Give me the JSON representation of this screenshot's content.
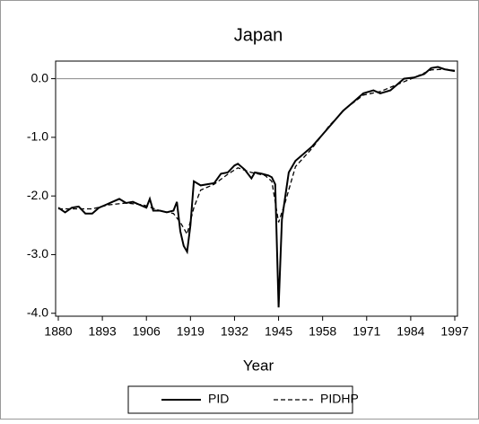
{
  "chart_data": {
    "type": "line",
    "title": "Japan",
    "x_label": "Year",
    "xlim": [
      1880,
      1997
    ],
    "xticks": [
      1880,
      1893,
      1906,
      1919,
      1932,
      1945,
      1958,
      1971,
      1984,
      1997
    ],
    "ylim": [
      -4.05,
      0.3
    ],
    "yticks": [
      {
        "value": 0,
        "label": "0.0"
      },
      {
        "value": -1,
        "label": "-1.0"
      },
      {
        "value": -2,
        "label": "-2.0"
      },
      {
        "value": -3,
        "label": "-3.0"
      },
      {
        "value": -4,
        "label": "-4.0"
      }
    ],
    "reference_line": 0,
    "legend": "bottom",
    "series": [
      {
        "name": "PID",
        "color": "#000000",
        "dash": "solid",
        "x": [
          1880,
          1882,
          1884,
          1886,
          1888,
          1890,
          1892,
          1894,
          1896,
          1898,
          1900,
          1902,
          1904,
          1906,
          1907,
          1908,
          1910,
          1912,
          1914,
          1915,
          1916,
          1917,
          1918,
          1919,
          1920,
          1922,
          1924,
          1926,
          1928,
          1930,
          1932,
          1933,
          1935,
          1937,
          1938,
          1940,
          1942,
          1943,
          1944,
          1945,
          1946,
          1947,
          1948,
          1950,
          1952,
          1955,
          1958,
          1961,
          1964,
          1967,
          1970,
          1973,
          1975,
          1978,
          1980,
          1982,
          1985,
          1988,
          1990,
          1992,
          1994,
          1997
        ],
        "values": [
          -2.2,
          -2.28,
          -2.2,
          -2.18,
          -2.3,
          -2.3,
          -2.2,
          -2.15,
          -2.1,
          -2.05,
          -2.12,
          -2.1,
          -2.15,
          -2.2,
          -2.05,
          -2.25,
          -2.25,
          -2.28,
          -2.25,
          -2.1,
          -2.6,
          -2.85,
          -2.95,
          -2.5,
          -1.75,
          -1.82,
          -1.8,
          -1.78,
          -1.62,
          -1.6,
          -1.48,
          -1.45,
          -1.55,
          -1.7,
          -1.6,
          -1.62,
          -1.65,
          -1.68,
          -1.8,
          -3.9,
          -2.4,
          -2.0,
          -1.6,
          -1.4,
          -1.3,
          -1.15,
          -0.95,
          -0.75,
          -0.55,
          -0.4,
          -0.25,
          -0.2,
          -0.25,
          -0.2,
          -0.1,
          0.0,
          0.02,
          0.08,
          0.18,
          0.2,
          0.16,
          0.13
        ]
      },
      {
        "name": "PIDHP",
        "color": "#000000",
        "dash": "dashed",
        "x": [
          1880,
          1885,
          1890,
          1895,
          1900,
          1905,
          1910,
          1914,
          1916,
          1918,
          1920,
          1922,
          1926,
          1930,
          1933,
          1937,
          1941,
          1943,
          1945,
          1947,
          1950,
          1955,
          1960,
          1965,
          1970,
          1975,
          1980,
          1985,
          1990,
          1994,
          1997
        ],
        "values": [
          -2.22,
          -2.22,
          -2.22,
          -2.15,
          -2.12,
          -2.15,
          -2.25,
          -2.3,
          -2.45,
          -2.65,
          -2.2,
          -1.9,
          -1.8,
          -1.63,
          -1.52,
          -1.6,
          -1.65,
          -1.75,
          -2.45,
          -2.1,
          -1.5,
          -1.18,
          -0.8,
          -0.5,
          -0.28,
          -0.22,
          -0.1,
          0.02,
          0.15,
          0.16,
          0.14
        ]
      }
    ]
  }
}
